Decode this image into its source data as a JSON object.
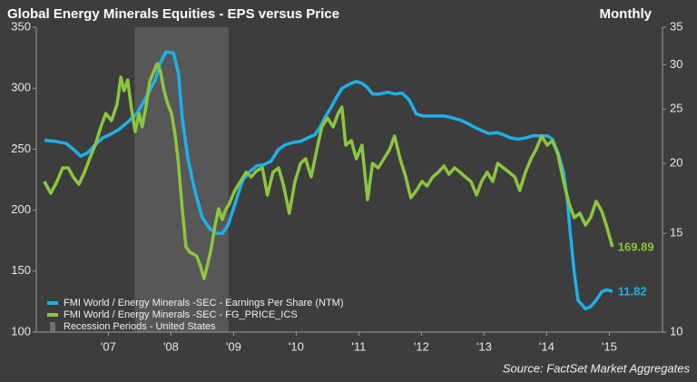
{
  "chart_data": {
    "type": "line",
    "title": "Global Energy Minerals Equities - EPS versus Price",
    "subtitle": "Monthly",
    "source": "Source: FactSet Market Aggregates",
    "legend": "lower left",
    "xlim": [
      2006.35,
      2016.35
    ],
    "xticks": [
      {
        "value": 2007.5,
        "label": "'07"
      },
      {
        "value": 2008.5,
        "label": "'08"
      },
      {
        "value": 2009.5,
        "label": "'09"
      },
      {
        "value": 2010.5,
        "label": "'10"
      },
      {
        "value": 2011.5,
        "label": "'11"
      },
      {
        "value": 2012.5,
        "label": "'12"
      },
      {
        "value": 2013.5,
        "label": "'13"
      },
      {
        "value": 2014.5,
        "label": "'14"
      },
      {
        "value": 2015.5,
        "label": "'15"
      }
    ],
    "ylim": [
      100,
      350
    ],
    "yticks": [
      100,
      150,
      200,
      250,
      300,
      350
    ],
    "y2lim": [
      10,
      35
    ],
    "y2ticks": [
      10,
      15,
      20,
      25,
      30,
      35
    ],
    "y2log": true,
    "shaded_regions": [
      {
        "name": "Recession Periods - United States",
        "color": "#6e6e6e",
        "x": [
          2007.92,
          2009.42
        ]
      }
    ],
    "series": [
      {
        "name": "FMI World / Energy Minerals -SEC - Earnings Per Share (NTM)",
        "color": "#1cb1ea",
        "axis": "y2",
        "x": [
          2006.48,
          2006.65,
          2006.83,
          2006.94,
          2007.06,
          2007.17,
          2007.29,
          2007.41,
          2007.52,
          2007.67,
          2007.81,
          2007.96,
          2008.1,
          2008.25,
          2008.33,
          2008.42,
          2008.54,
          2008.62,
          2008.68,
          2008.77,
          2008.88,
          2009.0,
          2009.12,
          2009.23,
          2009.32,
          2009.41,
          2009.52,
          2009.64,
          2009.75,
          2009.87,
          2009.99,
          2010.1,
          2010.22,
          2010.33,
          2010.45,
          2010.57,
          2010.68,
          2010.8,
          2010.88,
          2010.97,
          2011.06,
          2011.14,
          2011.23,
          2011.35,
          2011.46,
          2011.55,
          2011.64,
          2011.72,
          2011.84,
          2011.96,
          2012.07,
          2012.19,
          2012.3,
          2012.42,
          2012.54,
          2012.65,
          2012.77,
          2012.88,
          2013.0,
          2013.12,
          2013.23,
          2013.35,
          2013.46,
          2013.58,
          2013.7,
          2013.81,
          2013.93,
          2014.04,
          2014.16,
          2014.28,
          2014.39,
          2014.51,
          2014.59,
          2014.68,
          2014.77,
          2014.83,
          2014.88,
          2014.94,
          2015.0,
          2015.12,
          2015.2,
          2015.29,
          2015.38,
          2015.46,
          2015.55
        ],
        "values": [
          22.0,
          21.9,
          21.7,
          21.2,
          20.6,
          20.9,
          21.6,
          22.2,
          22.5,
          23.0,
          23.7,
          24.6,
          26.2,
          28.2,
          30.2,
          31.6,
          31.5,
          29.0,
          24.1,
          20.4,
          17.9,
          16.0,
          15.3,
          15.0,
          15.0,
          15.5,
          16.9,
          18.6,
          19.3,
          19.8,
          19.9,
          20.2,
          21.2,
          21.6,
          21.8,
          21.9,
          22.2,
          22.5,
          23.2,
          24.3,
          25.2,
          26.2,
          27.2,
          27.7,
          28.0,
          27.8,
          27.3,
          26.6,
          26.6,
          26.8,
          26.6,
          26.7,
          26.0,
          24.5,
          24.3,
          24.3,
          24.3,
          24.3,
          24.1,
          23.9,
          23.6,
          23.2,
          22.9,
          22.6,
          22.7,
          22.5,
          22.2,
          22.1,
          22.2,
          22.4,
          22.4,
          22.4,
          22.1,
          20.9,
          19.3,
          17.2,
          14.9,
          12.8,
          11.4,
          11.0,
          11.1,
          11.4,
          11.8,
          11.9,
          11.82
        ]
      },
      {
        "name": "FMI World / Energy Minerals -SEC - FG_PRICE_ICS",
        "color": "#8cc63e",
        "axis": "y",
        "x": [
          2006.48,
          2006.58,
          2006.68,
          2006.77,
          2006.86,
          2006.94,
          2007.03,
          2007.12,
          2007.2,
          2007.29,
          2007.38,
          2007.46,
          2007.55,
          2007.64,
          2007.7,
          2007.75,
          2007.81,
          2007.87,
          2007.93,
          2007.99,
          2008.04,
          2008.1,
          2008.16,
          2008.22,
          2008.28,
          2008.33,
          2008.39,
          2008.45,
          2008.51,
          2008.57,
          2008.62,
          2008.68,
          2008.74,
          2008.8,
          2008.86,
          2008.91,
          2008.97,
          2009.03,
          2009.09,
          2009.14,
          2009.2,
          2009.26,
          2009.32,
          2009.38,
          2009.43,
          2009.52,
          2009.61,
          2009.7,
          2009.78,
          2009.87,
          2009.96,
          2010.04,
          2010.13,
          2010.22,
          2010.3,
          2010.39,
          2010.48,
          2010.57,
          2010.65,
          2010.74,
          2010.83,
          2010.91,
          2011.0,
          2011.09,
          2011.17,
          2011.23,
          2011.29,
          2011.38,
          2011.46,
          2011.55,
          2011.64,
          2011.72,
          2011.81,
          2011.9,
          2011.99,
          2012.07,
          2012.16,
          2012.25,
          2012.33,
          2012.42,
          2012.51,
          2012.59,
          2012.68,
          2012.77,
          2012.86,
          2012.94,
          2013.03,
          2013.12,
          2013.2,
          2013.29,
          2013.38,
          2013.46,
          2013.55,
          2013.64,
          2013.72,
          2013.81,
          2013.9,
          2013.99,
          2014.07,
          2014.16,
          2014.25,
          2014.33,
          2014.42,
          2014.51,
          2014.59,
          2014.68,
          2014.77,
          2014.86,
          2014.94,
          2015.03,
          2015.12,
          2015.2,
          2015.29,
          2015.38,
          2015.46,
          2015.55
        ],
        "values": [
          223.5,
          213.8,
          223.5,
          234.7,
          234.7,
          227.2,
          221.3,
          231.0,
          242.1,
          253.3,
          268.2,
          279.3,
          273.4,
          286.8,
          309.1,
          297.9,
          306.8,
          283.0,
          264.4,
          279.3,
          268.2,
          284.5,
          305.4,
          312.8,
          320.2,
          314.3,
          297.9,
          286.8,
          279.3,
          260.7,
          238.4,
          201.2,
          170.0,
          165.5,
          164.0,
          162.5,
          154.3,
          143.9,
          156.6,
          167.7,
          186.3,
          201.2,
          192.3,
          201.2,
          204.9,
          216.1,
          223.5,
          231.0,
          227.2,
          232.4,
          234.7,
          212.4,
          231.0,
          234.7,
          219.8,
          197.5,
          223.5,
          238.4,
          242.1,
          227.2,
          249.6,
          268.2,
          275.6,
          268.2,
          279.3,
          284.5,
          253.3,
          257.0,
          242.1,
          253.3,
          208.6,
          238.4,
          234.7,
          242.1,
          249.6,
          260.7,
          242.1,
          227.2,
          210.1,
          216.1,
          223.5,
          219.8,
          227.2,
          231.0,
          236.2,
          229.5,
          234.7,
          231.0,
          227.2,
          223.5,
          212.4,
          223.5,
          231.0,
          223.5,
          238.4,
          234.7,
          231.0,
          227.2,
          216.1,
          231.0,
          242.1,
          249.6,
          260.7,
          253.3,
          257.0,
          245.8,
          223.5,
          204.9,
          193.8,
          197.5,
          187.8,
          193.8,
          207.2,
          199.0,
          186.3,
          169.89
        ]
      }
    ]
  }
}
